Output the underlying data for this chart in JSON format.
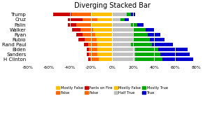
{
  "title": "Diverging Stacked Bar",
  "categories": [
    "Trump",
    "Cruz",
    "Palin",
    "Walker",
    "Ryan",
    "Rubio",
    "Rand Paul",
    "Biden",
    "Sanders",
    "H Clinton"
  ],
  "colors": {
    "mostly_false_neg": "#FFC000",
    "false_neg": "#FF6600",
    "pants_fire": "#CC0000",
    "half_true": "#C0C0C0",
    "mostly_true": "#00AA00",
    "true": "#0000CC"
  },
  "data": {
    "pants_fire": [
      17,
      14,
      8,
      8,
      6,
      6,
      4,
      2,
      2,
      2
    ],
    "false_neg": [
      19,
      14,
      14,
      12,
      12,
      11,
      9,
      8,
      8,
      8
    ],
    "mostly_false": [
      20,
      14,
      20,
      18,
      16,
      15,
      14,
      14,
      14,
      13
    ],
    "half_true": [
      14,
      8,
      18,
      20,
      20,
      20,
      18,
      22,
      22,
      22
    ],
    "mostly_true": [
      4,
      4,
      6,
      12,
      14,
      16,
      20,
      22,
      24,
      26
    ],
    "true": [
      4,
      4,
      6,
      8,
      12,
      14,
      20,
      28,
      28,
      29
    ]
  },
  "xlim": [
    -80,
    80
  ],
  "xticks": [
    -80,
    -60,
    -40,
    -20,
    0,
    20,
    40,
    60,
    80
  ],
  "xtick_labels": [
    "-80%",
    "-60%",
    "-40%",
    "-20%",
    "0%",
    "20%",
    "40%",
    "60%",
    "80%"
  ],
  "bg_color": "#FFFFFF",
  "bar_height": 0.7,
  "legend": [
    {
      "color": "#FFC000",
      "label": "Mostly False"
    },
    {
      "color": "#FF6600",
      "label": "False"
    },
    {
      "color": "#CC0000",
      "label": "Pants on Fire"
    },
    {
      "color": "#FF6600",
      "label": "False"
    },
    {
      "color": "#FFC000",
      "label": "Mostly False"
    },
    {
      "color": "#C0C0C0",
      "label": "Half True"
    },
    {
      "color": "#00AA00",
      "label": "Mostly True"
    },
    {
      "color": "#0000CC",
      "label": "True"
    }
  ]
}
